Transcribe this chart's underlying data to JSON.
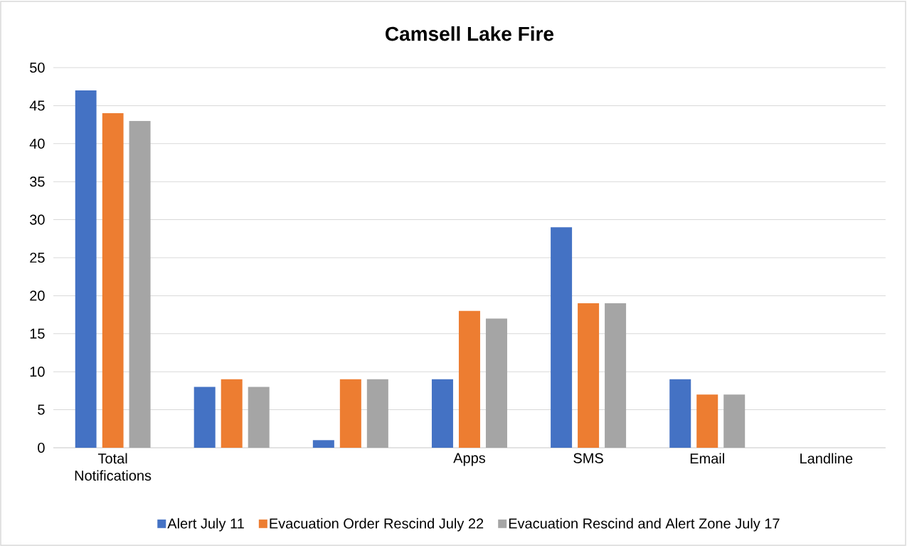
{
  "chart_data": {
    "type": "bar",
    "title": "Camsell Lake Fire",
    "categories": [
      "Total Notifications",
      null,
      null,
      "Apps",
      "SMS",
      "Email",
      "Landline"
    ],
    "series": [
      {
        "name": "Alert July 11",
        "color": "#4472c4",
        "values": [
          47,
          8,
          1,
          9,
          29,
          9,
          0
        ]
      },
      {
        "name": "Evacuation Order Rescind July 22",
        "color": "#ed7d31",
        "values": [
          44,
          9,
          9,
          18,
          19,
          7,
          0
        ]
      },
      {
        "name": "Evacuation Rescind and Alert Zone July 17",
        "color": "#a5a5a5",
        "values": [
          43,
          8,
          9,
          17,
          19,
          7,
          0
        ]
      }
    ],
    "ylim": [
      0,
      50
    ],
    "yticks": [
      0,
      5,
      10,
      15,
      20,
      25,
      30,
      35,
      40,
      45,
      50
    ],
    "grid": "y",
    "legend": "bottom"
  }
}
